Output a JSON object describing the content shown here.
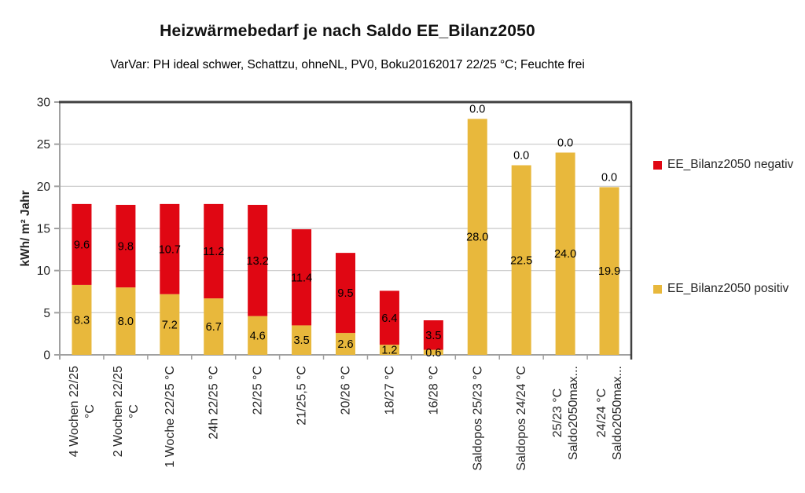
{
  "chart_data": {
    "type": "bar",
    "stacked": true,
    "title": "Heizwärmebedarf je nach Saldo EE_Bilanz2050",
    "subtitle": "VarVar: PH ideal schwer, Schattzu, ohneNL, PV0, Boku20162017 22/25 °C; Feuchte frei",
    "ylabel": "kWh/ m² Jahr",
    "xlabel": "",
    "ylim": [
      0,
      30
    ],
    "ytick_step": 5,
    "yticks": [
      0,
      5,
      10,
      15,
      20,
      25,
      30
    ],
    "grid": true,
    "legend_position": "right",
    "categories": [
      [
        "4 Wochen 22/25",
        "°C"
      ],
      [
        "2 Wochen 22/25",
        "°C"
      ],
      [
        "1 Woche 22/25 °C"
      ],
      [
        "24h 22/25 °C"
      ],
      [
        "22/25 °C"
      ],
      [
        "21/25,5 °C"
      ],
      [
        "20/26 °C"
      ],
      [
        "18/27 °C"
      ],
      [
        "16/28 °C"
      ],
      [
        "Saldopos 25/23 °C"
      ],
      [
        "Saldopos 24/24 °C"
      ],
      [
        "25/23 °C",
        "Saldo2050max..."
      ],
      [
        "24/24 °C",
        "Saldo2050max..."
      ]
    ],
    "series": [
      {
        "name": "EE_Bilanz2050 positiv",
        "color": "#E8B83C",
        "values": [
          8.3,
          8.0,
          7.2,
          6.7,
          4.6,
          3.5,
          2.6,
          1.2,
          0.6,
          28.0,
          22.5,
          24.0,
          19.9
        ]
      },
      {
        "name": "EE_Bilanz2050 negativ",
        "color": "#E00713",
        "values": [
          9.6,
          9.8,
          10.7,
          11.2,
          13.2,
          11.4,
          9.5,
          6.4,
          3.5,
          0.0,
          0.0,
          0.0,
          0.0
        ]
      }
    ]
  }
}
